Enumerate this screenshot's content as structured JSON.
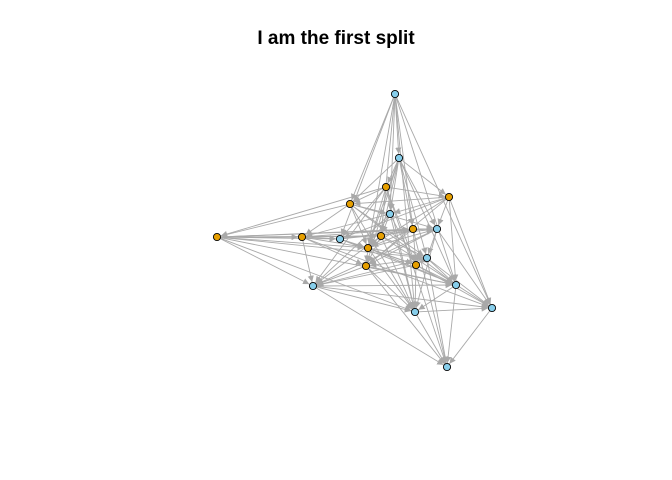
{
  "title": "I am the first split",
  "colors": {
    "edge": "#a9a9a9",
    "node_blue": "#87ceeb",
    "node_orange": "#e69f00",
    "node_stroke": "#000000"
  },
  "nodes": [
    {
      "id": "n1",
      "group": "blue"
    },
    {
      "id": "n2",
      "group": "blue"
    },
    {
      "id": "n3",
      "group": "orange"
    },
    {
      "id": "n4",
      "group": "orange"
    },
    {
      "id": "n5",
      "group": "orange"
    },
    {
      "id": "n6",
      "group": "blue"
    },
    {
      "id": "n7",
      "group": "orange"
    },
    {
      "id": "n8",
      "group": "orange"
    },
    {
      "id": "n9",
      "group": "blue"
    },
    {
      "id": "n10",
      "group": "orange"
    },
    {
      "id": "n11",
      "group": "orange"
    },
    {
      "id": "n12",
      "group": "orange"
    },
    {
      "id": "n13",
      "group": "blue"
    },
    {
      "id": "n14",
      "group": "blue"
    },
    {
      "id": "n15",
      "group": "orange"
    },
    {
      "id": "n16",
      "group": "orange"
    },
    {
      "id": "n17",
      "group": "blue"
    },
    {
      "id": "n18",
      "group": "blue"
    },
    {
      "id": "n19",
      "group": "blue"
    },
    {
      "id": "n20",
      "group": "blue"
    },
    {
      "id": "n21",
      "group": "blue"
    }
  ],
  "edges": [
    [
      "n1",
      "n2"
    ],
    [
      "n1",
      "n9"
    ],
    [
      "n1",
      "n5"
    ],
    [
      "n1",
      "n6"
    ],
    [
      "n1",
      "n11"
    ],
    [
      "n1",
      "n12"
    ],
    [
      "n1",
      "n19"
    ],
    [
      "n1",
      "n18"
    ],
    [
      "n1",
      "n20"
    ],
    [
      "n1",
      "n10"
    ],
    [
      "n2",
      "n4"
    ],
    [
      "n2",
      "n3"
    ],
    [
      "n2",
      "n6"
    ],
    [
      "n2",
      "n11"
    ],
    [
      "n2",
      "n12"
    ],
    [
      "n2",
      "n13"
    ],
    [
      "n2",
      "n14"
    ],
    [
      "n2",
      "n18"
    ],
    [
      "n2",
      "n5"
    ],
    [
      "n2",
      "n10"
    ],
    [
      "n2",
      "n15"
    ],
    [
      "n3",
      "n4"
    ],
    [
      "n3",
      "n5"
    ],
    [
      "n3",
      "n7"
    ],
    [
      "n3",
      "n9"
    ],
    [
      "n3",
      "n10"
    ],
    [
      "n3",
      "n12"
    ],
    [
      "n3",
      "n17"
    ],
    [
      "n3",
      "n16"
    ],
    [
      "n3",
      "n19"
    ],
    [
      "n3",
      "n21"
    ],
    [
      "n4",
      "n5"
    ],
    [
      "n4",
      "n6"
    ],
    [
      "n4",
      "n9"
    ],
    [
      "n4",
      "n12"
    ],
    [
      "n4",
      "n15"
    ],
    [
      "n4",
      "n13"
    ],
    [
      "n4",
      "n18"
    ],
    [
      "n4",
      "n20"
    ],
    [
      "n5",
      "n6"
    ],
    [
      "n5",
      "n7"
    ],
    [
      "n5",
      "n8"
    ],
    [
      "n5",
      "n12"
    ],
    [
      "n5",
      "n13"
    ],
    [
      "n5",
      "n14"
    ],
    [
      "n5",
      "n18"
    ],
    [
      "n5",
      "n19"
    ],
    [
      "n6",
      "n8"
    ],
    [
      "n6",
      "n10"
    ],
    [
      "n6",
      "n12"
    ],
    [
      "n6",
      "n16"
    ],
    [
      "n6",
      "n17"
    ],
    [
      "n6",
      "n19"
    ],
    [
      "n7",
      "n8"
    ],
    [
      "n7",
      "n9"
    ],
    [
      "n7",
      "n10"
    ],
    [
      "n7",
      "n11"
    ],
    [
      "n7",
      "n12"
    ],
    [
      "n7",
      "n13"
    ],
    [
      "n7",
      "n14"
    ],
    [
      "n7",
      "n17"
    ],
    [
      "n7",
      "n18"
    ],
    [
      "n7",
      "n19"
    ],
    [
      "n8",
      "n9"
    ],
    [
      "n8",
      "n10"
    ],
    [
      "n8",
      "n11"
    ],
    [
      "n8",
      "n12"
    ],
    [
      "n8",
      "n15"
    ],
    [
      "n8",
      "n17"
    ],
    [
      "n8",
      "n20"
    ],
    [
      "n9",
      "n11"
    ],
    [
      "n9",
      "n12"
    ],
    [
      "n9",
      "n13"
    ],
    [
      "n9",
      "n16"
    ],
    [
      "n9",
      "n18"
    ],
    [
      "n10",
      "n11"
    ],
    [
      "n10",
      "n12"
    ],
    [
      "n10",
      "n14"
    ],
    [
      "n10",
      "n15"
    ],
    [
      "n10",
      "n17"
    ],
    [
      "n10",
      "n19"
    ],
    [
      "n10",
      "n20"
    ],
    [
      "n11",
      "n12"
    ],
    [
      "n11",
      "n13"
    ],
    [
      "n11",
      "n15"
    ],
    [
      "n11",
      "n16"
    ],
    [
      "n11",
      "n21"
    ],
    [
      "n12",
      "n13"
    ],
    [
      "n12",
      "n14"
    ],
    [
      "n12",
      "n15"
    ],
    [
      "n12",
      "n16"
    ],
    [
      "n12",
      "n18"
    ],
    [
      "n12",
      "n19"
    ],
    [
      "n13",
      "n14"
    ],
    [
      "n13",
      "n15"
    ],
    [
      "n13",
      "n17"
    ],
    [
      "n13",
      "n19"
    ],
    [
      "n13",
      "n20"
    ],
    [
      "n14",
      "n15"
    ],
    [
      "n14",
      "n16"
    ],
    [
      "n14",
      "n17"
    ],
    [
      "n14",
      "n18"
    ],
    [
      "n14",
      "n20"
    ],
    [
      "n14",
      "n21"
    ],
    [
      "n15",
      "n17"
    ],
    [
      "n15",
      "n18"
    ],
    [
      "n15",
      "n19"
    ],
    [
      "n15",
      "n21"
    ],
    [
      "n16",
      "n17"
    ],
    [
      "n16",
      "n18"
    ],
    [
      "n16",
      "n19"
    ],
    [
      "n16",
      "n20"
    ],
    [
      "n17",
      "n18"
    ],
    [
      "n17",
      "n19"
    ],
    [
      "n17",
      "n20"
    ],
    [
      "n17",
      "n21"
    ],
    [
      "n18",
      "n19"
    ],
    [
      "n18",
      "n21"
    ],
    [
      "n19",
      "n20"
    ],
    [
      "n19",
      "n21"
    ],
    [
      "n20",
      "n21"
    ]
  ]
}
